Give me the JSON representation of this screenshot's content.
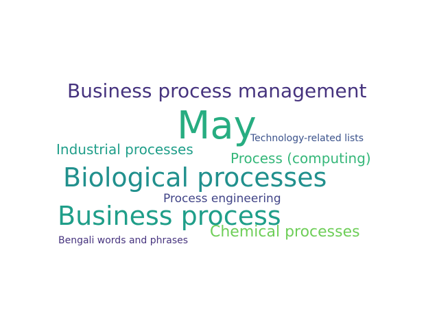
{
  "words": [
    {
      "text": "Business process management",
      "color": "#46337e"
    },
    {
      "text": "May",
      "color": "#27ad81"
    },
    {
      "text": "Technology-related lists",
      "color": "#3b528b"
    },
    {
      "text": "Industrial processes",
      "color": "#1f9e89"
    },
    {
      "text": "Process (computing)",
      "color": "#35b779"
    },
    {
      "text": "Biological processes",
      "color": "#21908d"
    },
    {
      "text": "Process engineering",
      "color": "#414487"
    },
    {
      "text": "Business process",
      "color": "#1f9e89"
    },
    {
      "text": "Chemical processes",
      "color": "#6ece58"
    },
    {
      "text": "Bengali words and phrases",
      "color": "#46337e"
    }
  ]
}
